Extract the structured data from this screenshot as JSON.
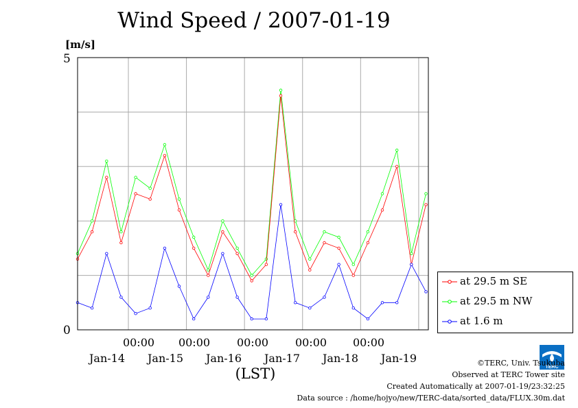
{
  "chart_data": {
    "type": "line",
    "title": "Wind Speed / 2007-01-19",
    "ylabel": "[m/s]",
    "xlabel": "(LST)",
    "ylim": [
      0,
      5
    ],
    "yticks": [
      "5",
      "0"
    ],
    "y_gridlines": [
      1,
      2,
      3,
      4
    ],
    "x_hour_ticks": [
      "00:00",
      "00:00",
      "00:00",
      "00:00",
      "00:00"
    ],
    "x_day_labels": [
      "Jan-14",
      "Jan-15",
      "Jan-16",
      "Jan-17",
      "Jan-18",
      "Jan-19"
    ],
    "x_range_hours": [
      0,
      145
    ],
    "grid": true,
    "legend_position": "lower-right outside",
    "series": [
      {
        "name": "at 29.5 m SE",
        "color": "#ff0000",
        "x": [
          0,
          6,
          12,
          18,
          24,
          30,
          36,
          42,
          48,
          54,
          60,
          66,
          72,
          78,
          84,
          90,
          96,
          102,
          108,
          114,
          120,
          126,
          132,
          138,
          144
        ],
        "values": [
          1.3,
          1.8,
          2.8,
          1.6,
          2.5,
          2.4,
          3.2,
          2.2,
          1.5,
          1.0,
          1.8,
          1.4,
          0.9,
          1.2,
          4.3,
          1.8,
          1.1,
          1.6,
          1.5,
          1.0,
          1.6,
          2.2,
          3.0,
          1.2,
          2.3
        ]
      },
      {
        "name": "at 29.5 m NW",
        "color": "#00ff00",
        "x": [
          0,
          6,
          12,
          18,
          24,
          30,
          36,
          42,
          48,
          54,
          60,
          66,
          72,
          78,
          84,
          90,
          96,
          102,
          108,
          114,
          120,
          126,
          132,
          138,
          144
        ],
        "values": [
          1.4,
          2.0,
          3.1,
          1.8,
          2.8,
          2.6,
          3.4,
          2.4,
          1.7,
          1.1,
          2.0,
          1.5,
          1.0,
          1.3,
          4.4,
          2.0,
          1.3,
          1.8,
          1.7,
          1.2,
          1.8,
          2.5,
          3.3,
          1.4,
          2.5
        ]
      },
      {
        "name": "at 1.6 m",
        "color": "#0000ff",
        "x": [
          0,
          6,
          12,
          18,
          24,
          30,
          36,
          42,
          48,
          54,
          60,
          66,
          72,
          78,
          84,
          90,
          96,
          102,
          108,
          114,
          120,
          126,
          132,
          138,
          144
        ],
        "values": [
          0.5,
          0.4,
          1.4,
          0.6,
          0.3,
          0.4,
          1.5,
          0.8,
          0.2,
          0.6,
          1.4,
          0.6,
          0.2,
          0.2,
          2.3,
          0.5,
          0.4,
          0.6,
          1.2,
          0.4,
          0.2,
          0.5,
          0.5,
          1.2,
          0.7
        ]
      }
    ]
  },
  "credits": {
    "copyright": "©TERC, Univ. Tsukuba",
    "observed": "Observed at TERC Tower site",
    "created": "Created Automatically at 2007-01-19/23:32:25",
    "source": "Data source : /home/hojyo/new/TERC-data/sorted_data/FLUX.30m.dat",
    "logo_text": "TERC"
  }
}
